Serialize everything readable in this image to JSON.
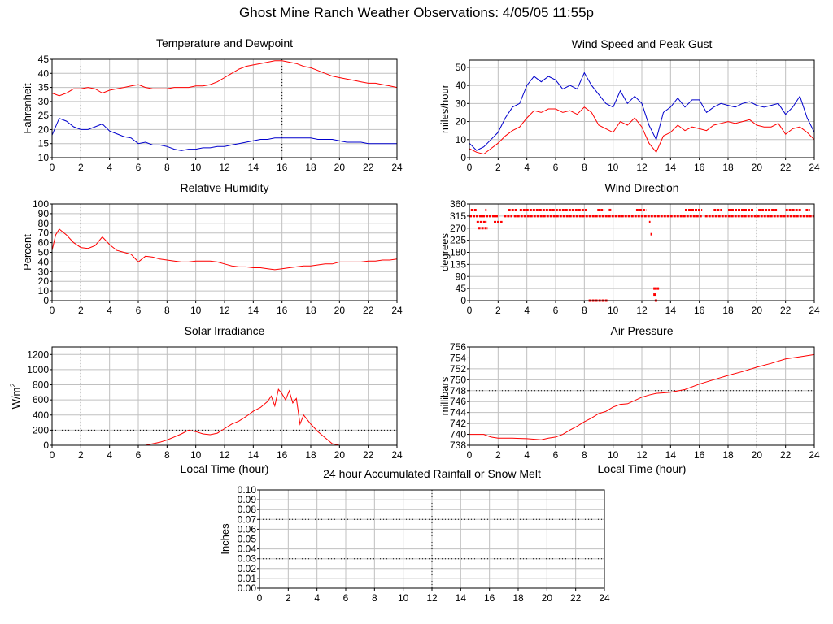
{
  "page_title": "Ghost Mine Ranch Weather Observations: 4/05/05 11:55p",
  "colors": {
    "primary": "#ff0000",
    "secondary": "#0000cc",
    "grid": "#c0c0c0",
    "axis": "#000000"
  },
  "chart_data": [
    {
      "id": "temp",
      "type": "line",
      "title": "Temperature and Dewpoint",
      "ylabel": "Fahrenheit",
      "xlabel": "",
      "xlim": [
        0,
        24
      ],
      "ylim": [
        10,
        45
      ],
      "xticks": [
        0,
        2,
        4,
        6,
        8,
        10,
        12,
        14,
        16,
        18,
        20,
        22,
        24
      ],
      "yticks": [
        10,
        15,
        20,
        25,
        30,
        35,
        40,
        45
      ],
      "dotted_x": [
        2,
        16
      ],
      "series": [
        {
          "name": "Temperature",
          "color": "#ff0000",
          "x": [
            0,
            0.5,
            1,
            1.5,
            2,
            2.5,
            3,
            3.5,
            4,
            4.5,
            5,
            5.5,
            6,
            6.5,
            7,
            7.5,
            8,
            8.5,
            9,
            9.5,
            10,
            10.5,
            11,
            11.5,
            12,
            12.5,
            13,
            13.5,
            14,
            14.5,
            15,
            15.5,
            16,
            16.5,
            17,
            17.5,
            18,
            18.5,
            19,
            19.5,
            20,
            20.5,
            21,
            21.5,
            22,
            22.5,
            23,
            23.5,
            24
          ],
          "y": [
            33,
            32,
            33,
            34.5,
            34.5,
            35,
            34.5,
            33,
            34,
            34.5,
            35,
            35.5,
            36,
            35,
            34.5,
            34.5,
            34.5,
            35,
            35,
            35,
            35.5,
            35.5,
            36,
            37,
            38.5,
            40,
            41.5,
            42.5,
            43,
            43.5,
            44,
            44.5,
            44.5,
            44,
            43.5,
            42.5,
            42,
            41,
            40,
            39,
            38.5,
            38,
            37.5,
            37,
            36.5,
            36.5,
            36,
            35.5,
            35
          ]
        },
        {
          "name": "Dewpoint",
          "color": "#0000cc",
          "x": [
            0,
            0.5,
            1,
            1.5,
            2,
            2.5,
            3,
            3.5,
            4,
            4.5,
            5,
            5.5,
            6,
            6.5,
            7,
            7.5,
            8,
            8.5,
            9,
            9.5,
            10,
            10.5,
            11,
            11.5,
            12,
            12.5,
            13,
            13.5,
            14,
            14.5,
            15,
            15.5,
            16,
            16.5,
            17,
            17.5,
            18,
            18.5,
            19,
            19.5,
            20,
            20.5,
            21,
            21.5,
            22,
            22.5,
            23,
            23.5,
            24
          ],
          "y": [
            18,
            24,
            23,
            21,
            20,
            20,
            21,
            22,
            19.5,
            18.5,
            17.5,
            17,
            15,
            15.5,
            14.5,
            14.5,
            14,
            13,
            12.5,
            13,
            13,
            13.5,
            13.5,
            14,
            14,
            14.5,
            15,
            15.5,
            16,
            16.5,
            16.5,
            17,
            17,
            17,
            17,
            17,
            17,
            16.5,
            16.5,
            16.5,
            16,
            15.5,
            15.5,
            15.5,
            15,
            15,
            15,
            15,
            15
          ]
        }
      ]
    },
    {
      "id": "wind",
      "type": "line",
      "title": "Wind Speed and Peak Gust",
      "ylabel": "miles/hour",
      "xlabel": "",
      "xlim": [
        0,
        24
      ],
      "ylim": [
        0,
        54
      ],
      "xticks": [
        0,
        2,
        4,
        6,
        8,
        10,
        12,
        14,
        16,
        18,
        20,
        22,
        24
      ],
      "yticks": [
        0,
        10,
        20,
        30,
        40,
        50
      ],
      "dotted_x": [
        20
      ],
      "series": [
        {
          "name": "Wind Speed",
          "color": "#ff0000",
          "x": [
            0,
            0.5,
            1,
            1.5,
            2,
            2.5,
            3,
            3.5,
            4,
            4.5,
            5,
            5.5,
            6,
            6.5,
            7,
            7.5,
            8,
            8.5,
            9,
            9.5,
            10,
            10.5,
            11,
            11.5,
            12,
            12.5,
            13,
            13.5,
            14,
            14.5,
            15,
            15.5,
            16,
            16.5,
            17,
            17.5,
            18,
            18.5,
            19,
            19.5,
            20,
            20.5,
            21,
            21.5,
            22,
            22.5,
            23,
            23.5,
            24
          ],
          "y": [
            5,
            3,
            2,
            5,
            8,
            12,
            15,
            17,
            22,
            26,
            25,
            27,
            27,
            25,
            26,
            24,
            28,
            25,
            18,
            16,
            14,
            20,
            18,
            22,
            17,
            8,
            3,
            12,
            14,
            18,
            15,
            17,
            16,
            15,
            18,
            19,
            20,
            19,
            20,
            21,
            18,
            17,
            17,
            19,
            13,
            16,
            17,
            14,
            10
          ]
        },
        {
          "name": "Peak Gust",
          "color": "#0000cc",
          "x": [
            0,
            0.5,
            1,
            1.5,
            2,
            2.5,
            3,
            3.5,
            4,
            4.5,
            5,
            5.5,
            6,
            6.5,
            7,
            7.5,
            8,
            8.5,
            9,
            9.5,
            10,
            10.5,
            11,
            11.5,
            12,
            12.5,
            13,
            13.5,
            14,
            14.5,
            15,
            15.5,
            16,
            16.5,
            17,
            17.5,
            18,
            18.5,
            19,
            19.5,
            20,
            20.5,
            21,
            21.5,
            22,
            22.5,
            23,
            23.5,
            24
          ],
          "y": [
            8,
            4,
            6,
            10,
            14,
            22,
            28,
            30,
            40,
            45,
            42,
            45,
            43,
            38,
            40,
            38,
            47,
            40,
            35,
            30,
            28,
            37,
            30,
            34,
            30,
            18,
            10,
            25,
            28,
            33,
            28,
            32,
            32,
            25,
            28,
            30,
            29,
            28,
            30,
            31,
            29,
            28,
            29,
            30,
            24,
            28,
            34,
            22,
            14
          ]
        }
      ]
    },
    {
      "id": "rh",
      "type": "line",
      "title": "Relative Humidity",
      "ylabel": "Percent",
      "xlabel": "",
      "xlim": [
        0,
        24
      ],
      "ylim": [
        0,
        100
      ],
      "xticks": [
        0,
        2,
        4,
        6,
        8,
        10,
        12,
        14,
        16,
        18,
        20,
        22,
        24
      ],
      "yticks": [
        0,
        10,
        20,
        30,
        40,
        50,
        60,
        70,
        80,
        90,
        100
      ],
      "dotted_x": [
        2
      ],
      "series": [
        {
          "name": "Relative Humidity",
          "color": "#ff0000",
          "x": [
            0,
            0.25,
            0.5,
            1,
            1.5,
            2,
            2.5,
            3,
            3.5,
            4,
            4.5,
            5,
            5.5,
            6,
            6.5,
            7,
            7.5,
            8,
            8.5,
            9,
            9.5,
            10,
            10.5,
            11,
            11.5,
            12,
            12.5,
            13,
            13.5,
            14,
            14.5,
            15,
            15.5,
            16,
            16.5,
            17,
            17.5,
            18,
            18.5,
            19,
            19.5,
            20,
            20.5,
            21,
            21.5,
            22,
            22.5,
            23,
            23.5,
            24
          ],
          "y": [
            52,
            68,
            74,
            68,
            60,
            55,
            54,
            57,
            66,
            58,
            52,
            50,
            48,
            40,
            46,
            45,
            43,
            42,
            41,
            40,
            40,
            41,
            41,
            41,
            40,
            38,
            36,
            35,
            35,
            34,
            34,
            33,
            32,
            33,
            34,
            35,
            36,
            36,
            37,
            38,
            38,
            40,
            40,
            40,
            40,
            41,
            41,
            42,
            42,
            43
          ]
        }
      ]
    },
    {
      "id": "wdir",
      "type": "scatter",
      "title": "Wind Direction",
      "ylabel": "degrees",
      "xlabel": "",
      "xlim": [
        0,
        24
      ],
      "ylim": [
        0,
        360
      ],
      "xticks": [
        0,
        2,
        4,
        6,
        8,
        10,
        12,
        14,
        16,
        18,
        20,
        22,
        24
      ],
      "yticks": [
        0,
        45,
        90,
        135,
        180,
        225,
        270,
        315,
        360
      ],
      "dotted_x": [
        20
      ],
      "series": [
        {
          "name": "Wind Direction",
          "color": "#ff0000",
          "segments": [
            {
              "x0": 0.0,
              "x1": 2.0,
              "y": 315
            },
            {
              "x0": 2.4,
              "x1": 3.0,
              "y": 315
            },
            {
              "x0": 3.1,
              "x1": 16.2,
              "y": 315
            },
            {
              "x0": 16.4,
              "x1": 24.0,
              "y": 315
            },
            {
              "x0": 0.1,
              "x1": 0.5,
              "y": 337.5
            },
            {
              "x0": 1.1,
              "x1": 1.2,
              "y": 337.5
            },
            {
              "x0": 2.7,
              "x1": 3.3,
              "y": 337.5
            },
            {
              "x0": 3.5,
              "x1": 8.2,
              "y": 337.5
            },
            {
              "x0": 8.9,
              "x1": 9.4,
              "y": 337.5
            },
            {
              "x0": 9.7,
              "x1": 9.9,
              "y": 337.5
            },
            {
              "x0": 11.6,
              "x1": 12.3,
              "y": 337.5
            },
            {
              "x0": 15.0,
              "x1": 16.2,
              "y": 337.5
            },
            {
              "x0": 17.0,
              "x1": 17.6,
              "y": 337.5
            },
            {
              "x0": 18.0,
              "x1": 19.8,
              "y": 337.5
            },
            {
              "x0": 20.1,
              "x1": 21.5,
              "y": 337.5
            },
            {
              "x0": 22.0,
              "x1": 23.1,
              "y": 337.5
            },
            {
              "x0": 23.4,
              "x1": 23.7,
              "y": 337.5
            },
            {
              "x0": 0.5,
              "x1": 1.2,
              "y": 292.5
            },
            {
              "x0": 1.7,
              "x1": 2.3,
              "y": 292.5
            },
            {
              "x0": 12.5,
              "x1": 12.6,
              "y": 292.5
            },
            {
              "x0": 0.6,
              "x1": 1.3,
              "y": 270
            },
            {
              "x0": 12.6,
              "x1": 12.7,
              "y": 247.5
            },
            {
              "x0": 12.8,
              "x1": 13.2,
              "y": 45
            },
            {
              "x0": 12.8,
              "x1": 13.0,
              "y": 22.5
            },
            {
              "x0": 8.3,
              "x1": 9.6,
              "y": 0
            },
            {
              "x0": 12.9,
              "x1": 13.1,
              "y": 0
            }
          ]
        }
      ]
    },
    {
      "id": "solar",
      "type": "line",
      "title": "Solar Irradiance",
      "ylabel": "W/m²",
      "ylabel_base": "W/m",
      "ylabel_sup": "2",
      "xlabel": "Local Time (hour)",
      "xlim": [
        0,
        24
      ],
      "ylim": [
        0,
        1300
      ],
      "xticks": [
        0,
        2,
        4,
        6,
        8,
        10,
        12,
        14,
        16,
        18,
        20,
        22,
        24
      ],
      "yticks": [
        0,
        200,
        400,
        600,
        800,
        1000,
        1200
      ],
      "dotted_x": [
        2
      ],
      "dotted_y": [
        200
      ],
      "series": [
        {
          "name": "Solar Irradiance",
          "color": "#ff0000",
          "x": [
            0,
            6.5,
            7,
            7.5,
            8,
            8.5,
            9,
            9.5,
            10,
            10.5,
            11,
            11.5,
            12,
            12.5,
            13,
            13.5,
            14,
            14.5,
            15,
            15.25,
            15.5,
            15.75,
            16,
            16.25,
            16.5,
            16.75,
            17,
            17.25,
            17.5,
            18,
            18.5,
            19,
            19.5,
            20,
            24
          ],
          "y": [
            0,
            0,
            20,
            40,
            70,
            110,
            150,
            200,
            180,
            150,
            140,
            160,
            220,
            280,
            320,
            380,
            450,
            500,
            580,
            650,
            520,
            740,
            680,
            600,
            720,
            560,
            620,
            280,
            400,
            280,
            180,
            100,
            20,
            0,
            0
          ]
        }
      ]
    },
    {
      "id": "pressure",
      "type": "line",
      "title": "Air Pressure",
      "ylabel": "millibars",
      "xlabel": "Local Time (hour)",
      "xlim": [
        0,
        24
      ],
      "ylim": [
        738,
        756
      ],
      "xticks": [
        0,
        2,
        4,
        6,
        8,
        10,
        12,
        14,
        16,
        18,
        20,
        22,
        24
      ],
      "yticks": [
        738,
        740,
        742,
        744,
        746,
        748,
        750,
        752,
        754,
        756
      ],
      "dotted_x": [
        20
      ],
      "dotted_y": [
        748
      ],
      "series": [
        {
          "name": "Air Pressure",
          "color": "#ff0000",
          "x": [
            0,
            1,
            1.5,
            2,
            3,
            4,
            5,
            5.5,
            6,
            6.5,
            7,
            7.5,
            8,
            8.5,
            9,
            9.5,
            10,
            10.5,
            11,
            11.5,
            12,
            12.5,
            13,
            13.5,
            14,
            15,
            16,
            17,
            18,
            19,
            20,
            21,
            22,
            23,
            24
          ],
          "y": [
            740,
            740,
            739.5,
            739.3,
            739.3,
            739.2,
            739,
            739.3,
            739.5,
            740,
            740.8,
            741.5,
            742.3,
            743,
            743.8,
            744.2,
            745,
            745.5,
            745.6,
            746.2,
            746.8,
            747.2,
            747.5,
            747.6,
            747.7,
            748.2,
            749.2,
            750,
            750.8,
            751.5,
            752.3,
            753,
            753.8,
            754.2,
            754.6
          ]
        }
      ]
    },
    {
      "id": "rain",
      "type": "line",
      "title": "24 hour Accumulated Rainfall or Snow Melt",
      "ylabel": "Inches",
      "xlabel": "",
      "xlim": [
        0,
        24
      ],
      "ylim": [
        0,
        0.1
      ],
      "xticks": [
        0,
        2,
        4,
        6,
        8,
        10,
        12,
        14,
        16,
        18,
        20,
        22,
        24
      ],
      "yticks": [
        0.0,
        0.01,
        0.02,
        0.03,
        0.04,
        0.05,
        0.06,
        0.07,
        0.08,
        0.09,
        0.1
      ],
      "ytick_labels": [
        "0.00",
        "0.01",
        "0.02",
        "0.03",
        "0.04",
        "0.05",
        "0.06",
        "0.07",
        "0.08",
        "0.09",
        "0.10"
      ],
      "dotted_x": [
        12
      ],
      "dotted_y": [
        0.03,
        0.07
      ],
      "series": [
        {
          "name": "Accumulated Rainfall",
          "color": "#ff0000",
          "x": [
            0,
            24
          ],
          "y": [
            0,
            0
          ]
        }
      ]
    }
  ]
}
